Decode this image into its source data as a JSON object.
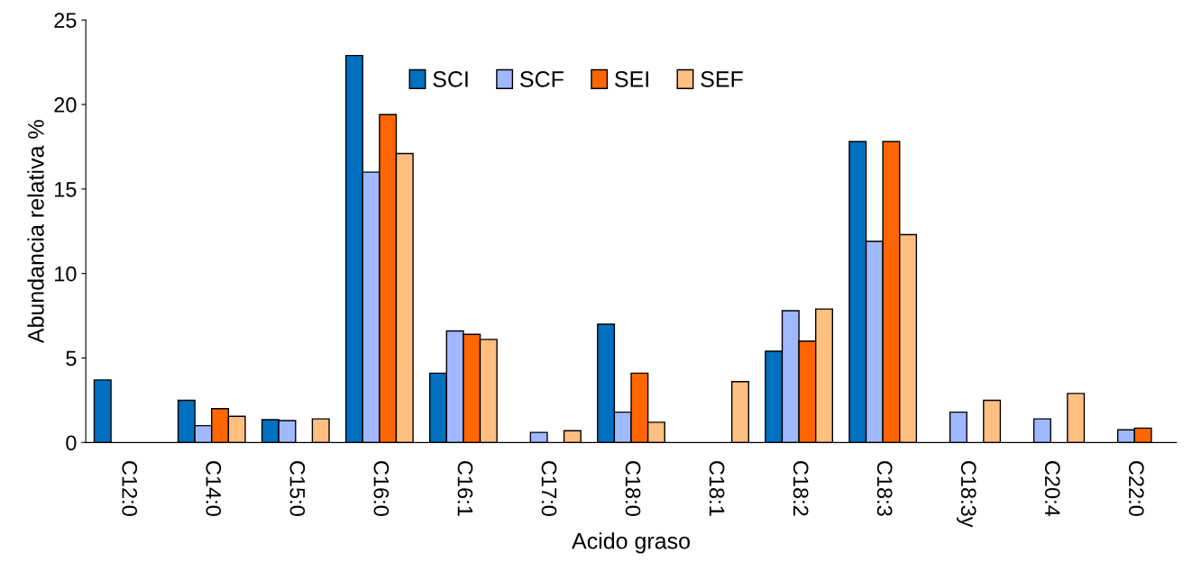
{
  "chart_data": {
    "type": "bar",
    "xlabel": "Acido graso",
    "ylabel": "Abundancia relativa %",
    "categories": [
      "C12:0",
      "C14:0",
      "C15:0",
      "C16:0",
      "C16:1",
      "C17:0",
      "C18:0",
      "C18:1",
      "C18:2",
      "C18:3",
      "C18:3y",
      "C20:4",
      "C22:0"
    ],
    "series": [
      {
        "name": "SCI",
        "color": "#0070c0",
        "values": [
          3.7,
          2.5,
          1.35,
          22.9,
          4.1,
          null,
          7.0,
          null,
          5.4,
          17.8,
          null,
          null,
          null
        ]
      },
      {
        "name": "SCF",
        "color": "#9fb8ff",
        "values": [
          null,
          1.0,
          1.3,
          16.0,
          6.6,
          0.6,
          1.8,
          null,
          7.8,
          11.9,
          1.8,
          1.4,
          0.75
        ]
      },
      {
        "name": "SEI",
        "color": "#ff6600",
        "values": [
          null,
          2.0,
          null,
          19.4,
          6.4,
          null,
          4.1,
          null,
          6.0,
          17.8,
          null,
          null,
          0.85
        ]
      },
      {
        "name": "SEF",
        "color": "#ffbf80",
        "values": [
          null,
          1.55,
          1.4,
          17.1,
          6.1,
          0.7,
          1.2,
          3.6,
          7.9,
          12.3,
          2.5,
          2.9,
          null
        ]
      }
    ],
    "ylim": [
      0,
      25
    ],
    "yticks": [
      0,
      5,
      10,
      15,
      20,
      25
    ],
    "grid": false,
    "legend": "top"
  }
}
